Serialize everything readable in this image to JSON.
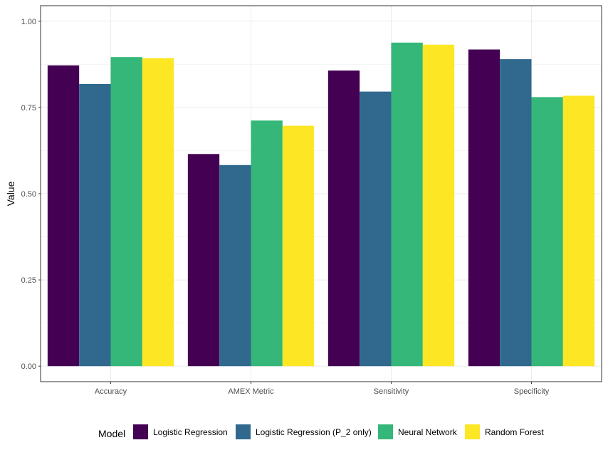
{
  "chart_data": {
    "type": "bar",
    "title": "",
    "xlabel": "",
    "ylabel": "Value",
    "ylim": [
      0,
      1.0
    ],
    "yticks": [
      "0.00",
      "0.25",
      "0.50",
      "0.75",
      "1.00"
    ],
    "grid": true,
    "legend_position": "bottom",
    "legend_title": "Model",
    "categories": [
      "Accuracy",
      "AMEX Metric",
      "Sensitivity",
      "Specificity"
    ],
    "series": [
      {
        "name": "Logistic Regression",
        "color": "#440154",
        "values": [
          0.872,
          0.615,
          0.857,
          0.918
        ]
      },
      {
        "name": "Logistic Regression (P_2 only)",
        "color": "#31688E",
        "values": [
          0.818,
          0.583,
          0.796,
          0.89
        ]
      },
      {
        "name": "Neural Network",
        "color": "#35B779",
        "values": [
          0.896,
          0.712,
          0.938,
          0.78
        ]
      },
      {
        "name": "Random Forest",
        "color": "#FDE725",
        "values": [
          0.893,
          0.697,
          0.932,
          0.784
        ]
      }
    ]
  }
}
